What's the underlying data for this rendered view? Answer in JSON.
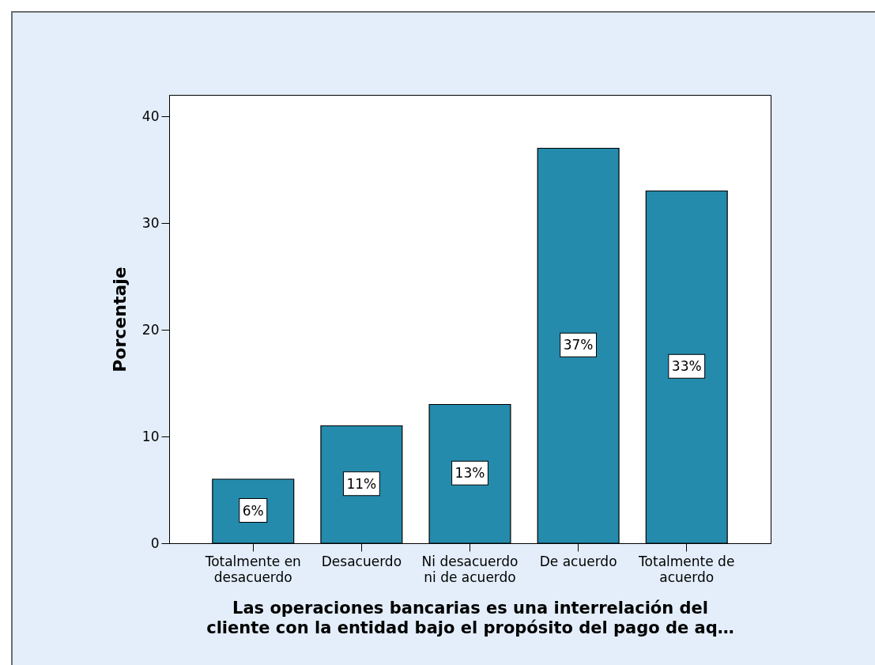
{
  "chart_data": {
    "type": "bar",
    "xlabel": "Las operaciones bancarias es una interrelación del cliente con la entidad bajo el propósito del pago de aq…",
    "ylabel": "Porcentaje",
    "categories": [
      "Totalmente en desacuerdo",
      "Desacuerdo",
      "Ni desacuerdo ni de acuerdo",
      "De acuerdo",
      "Totalmente de acuerdo"
    ],
    "values": [
      6,
      11,
      13,
      37,
      33
    ],
    "value_labels": [
      "6%",
      "11%",
      "13%",
      "37%",
      "33%"
    ],
    "color": "#248bad",
    "ylim": [
      0,
      42
    ],
    "yticks": [
      0,
      10,
      20,
      30,
      40
    ]
  }
}
